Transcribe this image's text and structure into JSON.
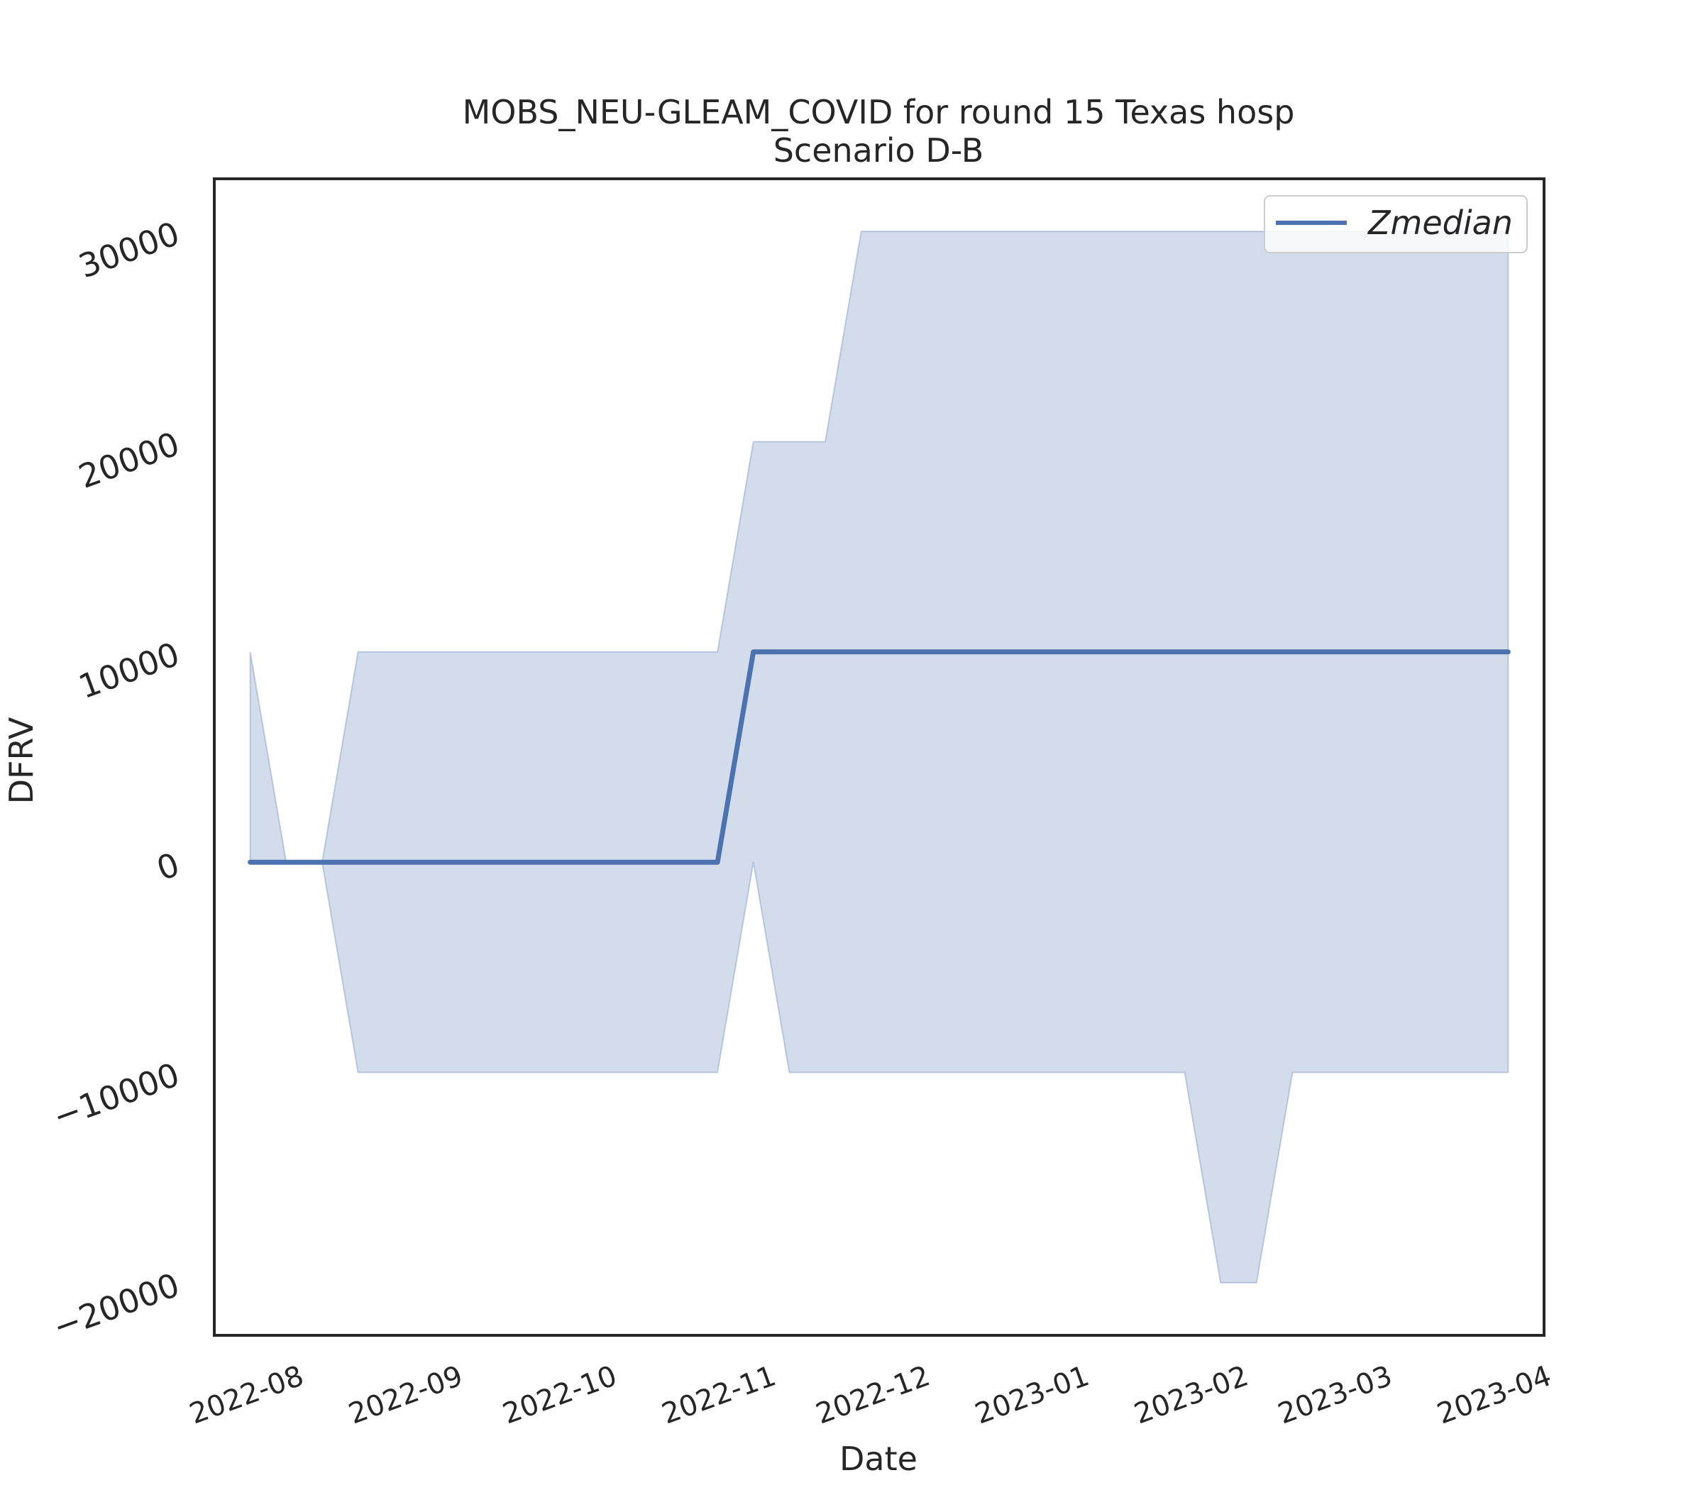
{
  "chart_data": {
    "type": "line",
    "title": "MOBS_NEU-GLEAM_COVID for round 15 Texas hosp",
    "subtitle": "Scenario D-B",
    "xlabel": "Date",
    "ylabel": "DFRV",
    "x_ticks": [
      "2022-08",
      "2022-09",
      "2022-10",
      "2022-11",
      "2022-12",
      "2023-01",
      "2023-02",
      "2023-03",
      "2023-04"
    ],
    "y_ticks": [
      -20000,
      -10000,
      0,
      10000,
      20000,
      30000
    ],
    "y_tick_labels": [
      "−20000",
      "−10000",
      "0",
      "10000",
      "20000",
      "30000"
    ],
    "xlim": [
      "2022-07-17",
      "2023-04-02"
    ],
    "ylim": [
      -22500,
      32500
    ],
    "grid": false,
    "legend_position": "top-right",
    "series": [
      {
        "name": "Zmedian",
        "color": "#4c72b0",
        "x": [
          "2022-07-24",
          "2022-07-31",
          "2022-08-07",
          "2022-08-14",
          "2022-08-21",
          "2022-08-28",
          "2022-09-04",
          "2022-09-11",
          "2022-09-18",
          "2022-09-25",
          "2022-10-02",
          "2022-10-09",
          "2022-10-16",
          "2022-10-23",
          "2022-10-30",
          "2022-11-06",
          "2022-11-13",
          "2022-11-20",
          "2022-11-27",
          "2022-12-04",
          "2022-12-11",
          "2022-12-18",
          "2022-12-25",
          "2023-01-01",
          "2023-01-08",
          "2023-01-15",
          "2023-01-22",
          "2023-01-29",
          "2023-02-05",
          "2023-02-12",
          "2023-02-19",
          "2023-02-26",
          "2023-03-05",
          "2023-03-12",
          "2023-03-19",
          "2023-03-26"
        ],
        "y": [
          0,
          0,
          0,
          0,
          0,
          0,
          0,
          0,
          0,
          0,
          0,
          0,
          0,
          0,
          10000,
          10000,
          10000,
          10000,
          10000,
          10000,
          10000,
          10000,
          10000,
          10000,
          10000,
          10000,
          10000,
          10000,
          10000,
          10000,
          10000,
          10000,
          10000,
          10000,
          10000,
          10000
        ]
      }
    ],
    "band": {
      "color": "#4c72b0",
      "x": [
        "2022-07-24",
        "2022-07-31",
        "2022-08-07",
        "2022-08-14",
        "2022-08-21",
        "2022-08-28",
        "2022-09-04",
        "2022-09-11",
        "2022-09-18",
        "2022-09-25",
        "2022-10-02",
        "2022-10-09",
        "2022-10-16",
        "2022-10-23",
        "2022-10-30",
        "2022-11-06",
        "2022-11-13",
        "2022-11-20",
        "2022-11-27",
        "2022-12-04",
        "2022-12-11",
        "2022-12-18",
        "2022-12-25",
        "2023-01-01",
        "2023-01-08",
        "2023-01-15",
        "2023-01-22",
        "2023-01-29",
        "2023-02-05",
        "2023-02-12",
        "2023-02-19",
        "2023-02-26",
        "2023-03-05",
        "2023-03-12",
        "2023-03-19",
        "2023-03-26"
      ],
      "lower": [
        0,
        0,
        0,
        -10000,
        -10000,
        -10000,
        -10000,
        -10000,
        -10000,
        -10000,
        -10000,
        -10000,
        -10000,
        -10000,
        0,
        -10000,
        -10000,
        -10000,
        -10000,
        -10000,
        -10000,
        -10000,
        -10000,
        -10000,
        -10000,
        -10000,
        -10000,
        -20000,
        -20000,
        -10000,
        -10000,
        -10000,
        -10000,
        -10000,
        -10000,
        -10000
      ],
      "upper": [
        10000,
        0,
        0,
        10000,
        10000,
        10000,
        10000,
        10000,
        10000,
        10000,
        10000,
        10000,
        10000,
        10000,
        20000,
        20000,
        20000,
        30000,
        30000,
        30000,
        30000,
        30000,
        30000,
        30000,
        30000,
        30000,
        30000,
        30000,
        30000,
        30000,
        30000,
        30000,
        30000,
        30000,
        30000,
        30000
      ]
    }
  }
}
